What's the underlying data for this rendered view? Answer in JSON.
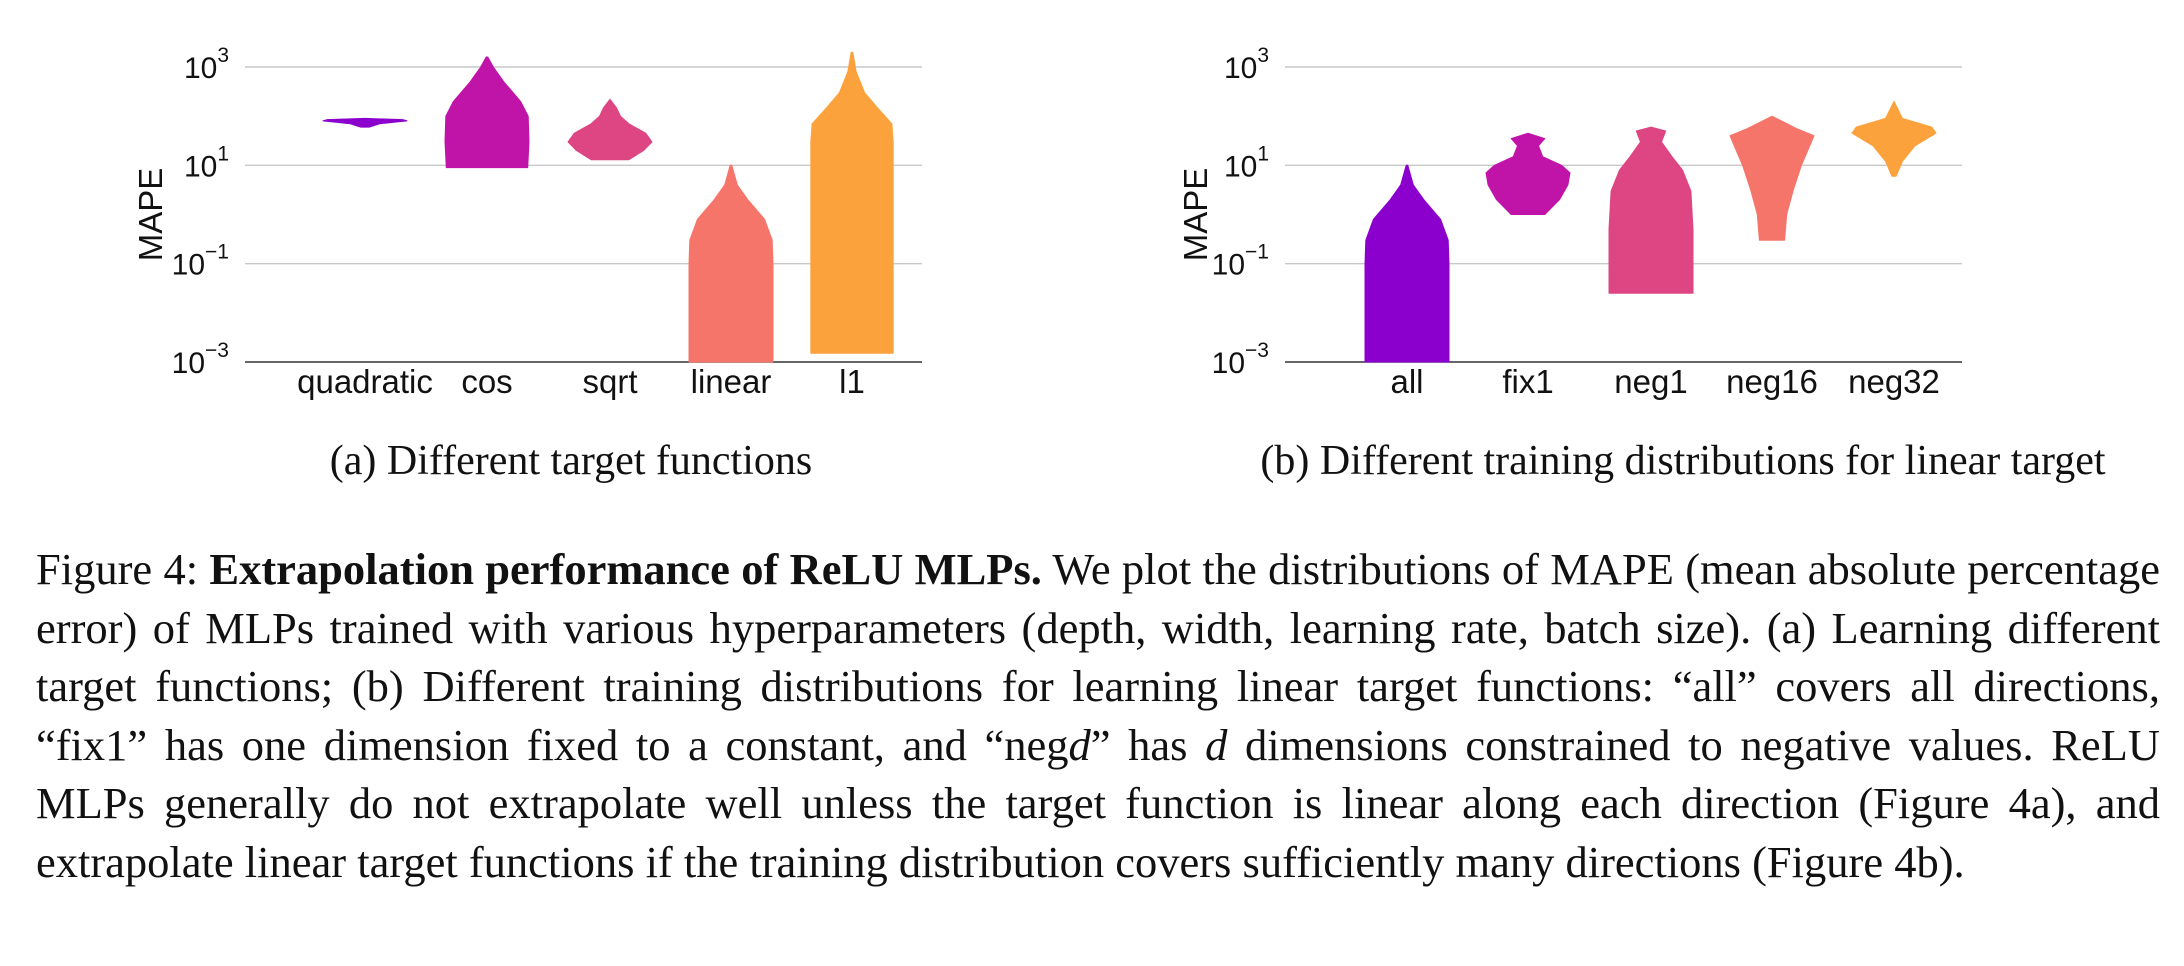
{
  "chart_data": [
    {
      "type": "violin",
      "panel": "a",
      "subcaption": "(a) Different target functions",
      "xlabel": "",
      "ylabel": "MAPE",
      "yscale": "log",
      "ylim": [
        0.001,
        1000
      ],
      "yticks": [
        {
          "value": 0.001,
          "base": "10",
          "exp": "−3"
        },
        {
          "value": 0.1,
          "base": "10",
          "exp": "−1"
        },
        {
          "value": 10,
          "base": "10",
          "exp": "1"
        },
        {
          "value": 1000,
          "base": "10",
          "exp": "3"
        }
      ],
      "grid": true,
      "categories": [
        "quadratic",
        "cos",
        "sqrt",
        "linear",
        "l1"
      ],
      "series": [
        {
          "category": "quadratic",
          "color": "#8b00cc",
          "profile": [
            [
              60,
              0.1
            ],
            [
              70,
              0.35
            ],
            [
              80,
              1.0
            ],
            [
              85,
              0.9
            ],
            [
              90,
              0.0
            ]
          ]
        },
        {
          "category": "cos",
          "color": "#c014a8",
          "profile": [
            [
              9,
              0.97
            ],
            [
              30,
              1.0
            ],
            [
              100,
              0.98
            ],
            [
              200,
              0.8
            ],
            [
              500,
              0.4
            ],
            [
              1000,
              0.15
            ],
            [
              1600,
              0.02
            ]
          ]
        },
        {
          "category": "sqrt",
          "color": "#de4583",
          "profile": [
            [
              13,
              0.45
            ],
            [
              20,
              0.8
            ],
            [
              30,
              1.0
            ],
            [
              45,
              0.85
            ],
            [
              70,
              0.45
            ],
            [
              100,
              0.25
            ],
            [
              150,
              0.15
            ],
            [
              220,
              0.0
            ]
          ]
        },
        {
          "category": "linear",
          "color": "#f6756a",
          "profile": [
            [
              0.001,
              1.0
            ],
            [
              0.1,
              1.0
            ],
            [
              0.3,
              0.98
            ],
            [
              0.8,
              0.8
            ],
            [
              2,
              0.4
            ],
            [
              4,
              0.15
            ],
            [
              10,
              0.02
            ]
          ]
        },
        {
          "category": "l1",
          "color": "#fca23d",
          "profile": [
            [
              0.0015,
              0.98
            ],
            [
              1,
              0.98
            ],
            [
              30,
              0.98
            ],
            [
              70,
              0.95
            ],
            [
              150,
              0.6
            ],
            [
              300,
              0.3
            ],
            [
              800,
              0.1
            ],
            [
              2000,
              0.02
            ]
          ]
        }
      ]
    },
    {
      "type": "violin",
      "panel": "b",
      "subcaption": "(b) Different training distributions for linear target",
      "xlabel": "",
      "ylabel": "MAPE",
      "yscale": "log",
      "ylim": [
        0.001,
        1000
      ],
      "yticks": [
        {
          "value": 0.001,
          "base": "10",
          "exp": "−3"
        },
        {
          "value": 0.1,
          "base": "10",
          "exp": "−1"
        },
        {
          "value": 10,
          "base": "10",
          "exp": "1"
        },
        {
          "value": 1000,
          "base": "10",
          "exp": "3"
        }
      ],
      "grid": true,
      "categories": [
        "all",
        "fix1",
        "neg1",
        "neg16",
        "neg32"
      ],
      "series": [
        {
          "category": "all",
          "color": "#8b00cc",
          "profile": [
            [
              0.001,
              1.0
            ],
            [
              0.1,
              1.0
            ],
            [
              0.3,
              0.98
            ],
            [
              0.8,
              0.8
            ],
            [
              2,
              0.4
            ],
            [
              4,
              0.15
            ],
            [
              10,
              0.02
            ]
          ]
        },
        {
          "category": "fix1",
          "color": "#c014a8",
          "profile": [
            [
              1.0,
              0.4
            ],
            [
              2,
              0.75
            ],
            [
              4,
              0.95
            ],
            [
              7,
              1.0
            ],
            [
              10,
              0.8
            ],
            [
              15,
              0.35
            ],
            [
              25,
              0.25
            ],
            [
              35,
              0.4
            ],
            [
              45,
              0.0
            ]
          ]
        },
        {
          "category": "neg1",
          "color": "#de4583",
          "profile": [
            [
              0.025,
              1.0
            ],
            [
              0.5,
              1.0
            ],
            [
              3,
              0.95
            ],
            [
              8,
              0.75
            ],
            [
              15,
              0.5
            ],
            [
              30,
              0.25
            ],
            [
              50,
              0.35
            ],
            [
              60,
              0.0
            ]
          ]
        },
        {
          "category": "neg16",
          "color": "#f6756a",
          "profile": [
            [
              0.3,
              0.3
            ],
            [
              1,
              0.35
            ],
            [
              3,
              0.5
            ],
            [
              10,
              0.7
            ],
            [
              25,
              0.9
            ],
            [
              40,
              1.0
            ],
            [
              55,
              0.6
            ],
            [
              100,
              0.0
            ]
          ]
        },
        {
          "category": "neg32",
          "color": "#fca23d",
          "profile": [
            [
              6,
              0.05
            ],
            [
              12,
              0.2
            ],
            [
              25,
              0.5
            ],
            [
              45,
              1.0
            ],
            [
              60,
              0.9
            ],
            [
              90,
              0.2
            ],
            [
              200,
              0.0
            ]
          ]
        }
      ]
    }
  ],
  "caption": {
    "prefix": "Figure 4: ",
    "bold": "Extrapolation performance of ReLU MLPs.",
    "t1": " We plot the distributions of MAPE (mean absolute percentage error) of MLPs trained with various hyperparameters (depth, width, learning rate, batch size). (a) Learning different target functions; (b) Different training distributions for learning linear target functions: “all” covers all directions, “fix1” has one dimension fixed to a constant, and “neg",
    "var1": "d",
    "t2": "” has ",
    "var2": "d",
    "t3": " dimensions constrained to negative values. ReLU MLPs generally do not extrapolate well unless the target function is linear along each direction (Figure 4a), and extrapolate linear target functions if the training distribution covers sufficiently many directions (Figure 4b)."
  }
}
